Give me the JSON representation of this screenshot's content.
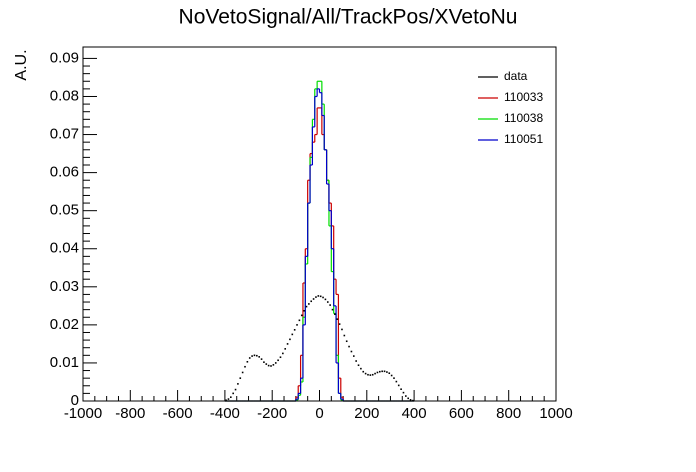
{
  "chart_data": {
    "type": "histogram",
    "title": "NoVetoSignal/All/TrackPos/XVetoNu",
    "y_label": "A.U.",
    "xlim": [
      -1000,
      1000
    ],
    "ylim": [
      0,
      0.093
    ],
    "xticks": [
      -1000,
      -800,
      -600,
      -400,
      -200,
      0,
      200,
      400,
      600,
      800,
      1000
    ],
    "yticks": [
      0,
      0.01,
      0.02,
      0.03,
      0.04,
      0.05,
      0.06,
      0.07,
      0.08,
      0.09
    ],
    "legend": "upper right",
    "bins": [
      -400,
      -390,
      -380,
      -370,
      -360,
      -350,
      -340,
      -330,
      -320,
      -310,
      -300,
      -290,
      -280,
      -270,
      -260,
      -250,
      -240,
      -230,
      -220,
      -210,
      -200,
      -190,
      -180,
      -170,
      -160,
      -150,
      -140,
      -130,
      -120,
      -110,
      -100,
      -90,
      -80,
      -70,
      -60,
      -50,
      -40,
      -30,
      -20,
      -10,
      0,
      10,
      20,
      30,
      40,
      50,
      60,
      70,
      80,
      90,
      100,
      110,
      120,
      130,
      140,
      150,
      160,
      170,
      180,
      190,
      200,
      210,
      220,
      230,
      240,
      250,
      260,
      270,
      280,
      290,
      300,
      310,
      320,
      330,
      340,
      350,
      360,
      370,
      380,
      390,
      400
    ],
    "series": [
      {
        "name": "data",
        "color": "#000000",
        "draw": "points",
        "values": [
          0.0002,
          0.0005,
          0.001,
          0.002,
          0.003,
          0.0045,
          0.006,
          0.0075,
          0.009,
          0.0103,
          0.0113,
          0.0118,
          0.012,
          0.0119,
          0.0116,
          0.011,
          0.0102,
          0.0097,
          0.0093,
          0.0092,
          0.0095,
          0.01,
          0.0107,
          0.0115,
          0.0125,
          0.0137,
          0.015,
          0.0162,
          0.0175,
          0.0187,
          0.02,
          0.0212,
          0.0225,
          0.0237,
          0.0248,
          0.0255,
          0.0262,
          0.0268,
          0.0273,
          0.0276,
          0.0275,
          0.0272,
          0.0267,
          0.026,
          0.0252,
          0.024,
          0.0228,
          0.0215,
          0.0202,
          0.0188,
          0.0172,
          0.0157,
          0.0143,
          0.013,
          0.0118,
          0.0105,
          0.0094,
          0.0085,
          0.0077,
          0.0072,
          0.0069,
          0.0068,
          0.0069,
          0.0072,
          0.0075,
          0.0077,
          0.0078,
          0.0078,
          0.0076,
          0.0073,
          0.0067,
          0.006,
          0.0051,
          0.0041,
          0.0031,
          0.0022,
          0.0013,
          0.0007,
          0.0003,
          0.0001
        ]
      },
      {
        "name": "110033",
        "color": "#cc0000",
        "draw": "step",
        "values": [
          0,
          0,
          0,
          0,
          0,
          0,
          0,
          0,
          0,
          0,
          0,
          0,
          0,
          0,
          0,
          0,
          0,
          0,
          0,
          0,
          0,
          0,
          0,
          0,
          0,
          0,
          0,
          0,
          0,
          0,
          0.001,
          0.004,
          0.012,
          0.031,
          0.04,
          0.058,
          0.065,
          0.068,
          0.07,
          0.077,
          0.077,
          0.07,
          0.066,
          0.058,
          0.052,
          0.046,
          0.032,
          0.028,
          0.006,
          0.001,
          0,
          0,
          0,
          0,
          0,
          0,
          0,
          0,
          0,
          0,
          0,
          0,
          0,
          0,
          0,
          0,
          0,
          0,
          0,
          0,
          0,
          0,
          0,
          0,
          0,
          0,
          0,
          0,
          0,
          0
        ]
      },
      {
        "name": "110038",
        "color": "#00dd00",
        "draw": "step",
        "values": [
          0,
          0,
          0,
          0,
          0,
          0,
          0,
          0,
          0,
          0,
          0,
          0,
          0,
          0,
          0,
          0,
          0,
          0,
          0,
          0,
          0,
          0,
          0,
          0,
          0,
          0,
          0,
          0,
          0,
          0,
          0.0003,
          0.0015,
          0.005,
          0.022,
          0.036,
          0.052,
          0.064,
          0.074,
          0.082,
          0.084,
          0.084,
          0.078,
          0.066,
          0.058,
          0.046,
          0.034,
          0.023,
          0.012,
          0.002,
          0.0003,
          0,
          0,
          0,
          0,
          0,
          0,
          0,
          0,
          0,
          0,
          0,
          0,
          0,
          0,
          0,
          0,
          0,
          0,
          0,
          0,
          0,
          0,
          0,
          0,
          0,
          0,
          0,
          0,
          0,
          0
        ]
      },
      {
        "name": "110051",
        "color": "#0000cc",
        "draw": "step",
        "values": [
          0,
          0,
          0,
          0,
          0,
          0,
          0,
          0,
          0,
          0,
          0,
          0,
          0,
          0,
          0,
          0,
          0,
          0,
          0,
          0,
          0,
          0,
          0,
          0,
          0,
          0,
          0,
          0,
          0,
          0,
          0.0005,
          0.002,
          0.006,
          0.02,
          0.038,
          0.052,
          0.062,
          0.072,
          0.08,
          0.082,
          0.081,
          0.075,
          0.066,
          0.057,
          0.05,
          0.04,
          0.025,
          0.01,
          0.002,
          0.0005,
          0,
          0,
          0,
          0,
          0,
          0,
          0,
          0,
          0,
          0,
          0,
          0,
          0,
          0,
          0,
          0,
          0,
          0,
          0,
          0,
          0,
          0,
          0,
          0,
          0,
          0,
          0,
          0,
          0,
          0
        ]
      }
    ]
  }
}
